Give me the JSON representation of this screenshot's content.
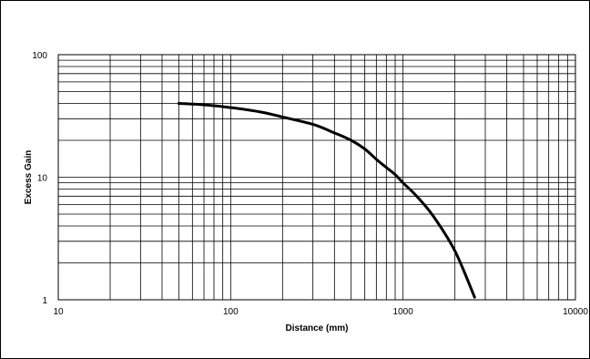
{
  "chart_data": {
    "type": "line",
    "xlabel": "Distance (mm)",
    "ylabel": "Excess Gain",
    "x_scale": "log",
    "y_scale": "log",
    "xlim": [
      10,
      10000
    ],
    "ylim": [
      1,
      100
    ],
    "grid": true,
    "x_ticks": [
      "10",
      "100",
      "1000",
      "10000"
    ],
    "y_ticks": [
      "1",
      "10",
      "100"
    ],
    "line_color": "#000000",
    "series": [
      {
        "x": [
          50,
          70,
          100,
          150,
          200,
          300,
          400,
          500,
          600,
          700,
          800,
          900,
          1000,
          1200,
          1500,
          2000,
          2600
        ],
        "values": [
          40,
          39,
          37,
          34,
          31,
          27,
          23,
          20,
          17,
          14,
          12,
          10.5,
          9,
          7,
          4.8,
          2.5,
          1.05
        ]
      }
    ]
  }
}
